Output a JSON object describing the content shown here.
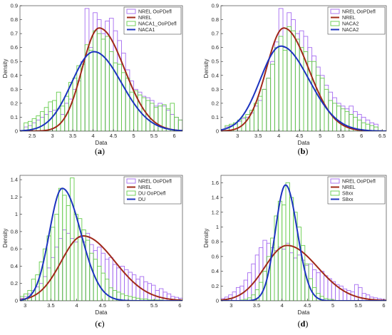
{
  "colors": {
    "hist_nrel": "#a66cf0",
    "hist_other": "#66cc4d",
    "fit_nrel": "#a0291a",
    "fit_other": "#1c33bf"
  },
  "chart_data": [
    {
      "type": "histogram_with_fit",
      "caption": "(a)",
      "xlabel": "Data",
      "ylabel": "Density",
      "xlim": [
        2.2,
        6.2
      ],
      "ylim": [
        0,
        0.9
      ],
      "xticks": [
        2.5,
        3,
        3.5,
        4,
        4.5,
        5,
        5.5,
        6
      ],
      "yticks": [
        0,
        0.1,
        0.2,
        0.3,
        0.4,
        0.5,
        0.6,
        0.7,
        0.8,
        0.9
      ],
      "legend_position": "top-right",
      "legend": [
        "NREL OoPDefl",
        "NREL",
        "NACA1_OoPDefl",
        "NACA1"
      ],
      "bin_start": 2.3,
      "bin_width": 0.1,
      "series": [
        {
          "name": "NREL OoPDefl",
          "kind": "hist",
          "color_key": "hist_nrel",
          "values": [
            0.03,
            0.04,
            0.06,
            0.08,
            0.1,
            0.12,
            0.14,
            0.15,
            0.16,
            0.12,
            0.2,
            0.23,
            0.3,
            0.36,
            0.5,
            0.88,
            0.6,
            0.85,
            0.8,
            0.7,
            0.79,
            0.81,
            0.72,
            0.65,
            0.56,
            0.44,
            0.36,
            0.3,
            0.28,
            0.25,
            0.24,
            0.22,
            0.18,
            0.2,
            0.18,
            0.15,
            0.12,
            0.1,
            0.08
          ]
        },
        {
          "name": "NACA1_OoPDefl",
          "kind": "hist",
          "color_key": "hist_other",
          "values": [
            0.06,
            0.07,
            0.09,
            0.11,
            0.14,
            0.17,
            0.21,
            0.22,
            0.28,
            0.18,
            0.25,
            0.35,
            0.38,
            0.47,
            0.48,
            0.62,
            0.58,
            0.72,
            0.7,
            0.66,
            0.68,
            0.57,
            0.49,
            0.48,
            0.42,
            0.38,
            0.28,
            0.29,
            0.26,
            0.24,
            0.22,
            0.2,
            0.17,
            0.18,
            0.19,
            0.16,
            0.2,
            0.1,
            0.08
          ]
        },
        {
          "name": "NREL",
          "kind": "fit",
          "color_key": "fit_nrel",
          "fit": {
            "family": "skewed",
            "peak_x": 4.15,
            "peak_y": 0.74,
            "sigma_left": 0.42,
            "sigma_right": 0.62
          }
        },
        {
          "name": "NACA1",
          "kind": "fit",
          "color_key": "fit_other",
          "fit": {
            "family": "skewed",
            "peak_x": 4.02,
            "peak_y": 0.57,
            "sigma_left": 0.55,
            "sigma_right": 0.68
          }
        }
      ]
    },
    {
      "type": "histogram_with_fit",
      "caption": "(b)",
      "xlabel": "Data",
      "ylabel": "Density",
      "xlim": [
        2.6,
        6.6
      ],
      "ylim": [
        0,
        0.9
      ],
      "xticks": [
        3,
        3.5,
        4,
        4.5,
        5,
        5.5,
        6,
        6.5
      ],
      "yticks": [
        0,
        0.1,
        0.2,
        0.3,
        0.4,
        0.5,
        0.6,
        0.7,
        0.8,
        0.9
      ],
      "legend_position": "top-right",
      "legend": [
        "NREL OoPDefl",
        "NREL",
        "NACA2",
        "NACA2"
      ],
      "bin_start": 2.7,
      "bin_width": 0.1,
      "series": [
        {
          "name": "NREL OoPDefl",
          "kind": "hist",
          "color_key": "hist_nrel",
          "values": [
            0.03,
            0.04,
            0.05,
            0.07,
            0.09,
            0.1,
            0.13,
            0.18,
            0.22,
            0.3,
            0.38,
            0.5,
            0.64,
            0.88,
            0.6,
            0.85,
            0.8,
            0.7,
            0.72,
            0.68,
            0.6,
            0.54,
            0.46,
            0.4,
            0.33,
            0.28,
            0.24,
            0.2,
            0.18,
            0.16,
            0.18,
            0.14,
            0.12,
            0.1,
            0.08,
            0.06,
            0.05
          ]
        },
        {
          "name": "NACA2",
          "kind": "hist",
          "color_key": "hist_other",
          "values": [
            0.04,
            0.05,
            0.06,
            0.08,
            0.1,
            0.12,
            0.15,
            0.2,
            0.25,
            0.3,
            0.38,
            0.48,
            0.6,
            0.68,
            0.58,
            0.75,
            0.72,
            0.66,
            0.6,
            0.57,
            0.5,
            0.5,
            0.4,
            0.38,
            0.3,
            0.22,
            0.2,
            0.18,
            0.16,
            0.14,
            0.12,
            0.1,
            0.08,
            0.06,
            0.05,
            0.04,
            0.03
          ]
        },
        {
          "name": "NREL",
          "kind": "fit",
          "color_key": "fit_nrel",
          "fit": {
            "family": "skewed",
            "peak_x": 4.12,
            "peak_y": 0.74,
            "sigma_left": 0.42,
            "sigma_right": 0.6
          }
        },
        {
          "name": "NACA2",
          "kind": "fit",
          "color_key": "fit_other",
          "fit": {
            "family": "skewed",
            "peak_x": 4.05,
            "peak_y": 0.61,
            "sigma_left": 0.5,
            "sigma_right": 0.68
          }
        }
      ]
    },
    {
      "type": "histogram_with_fit",
      "caption": "(c)",
      "xlabel": "Data",
      "ylabel": "Density",
      "xlim": [
        2.9,
        6.05
      ],
      "ylim": [
        0,
        1.45
      ],
      "xticks": [
        3,
        3.5,
        4,
        4.5,
        5,
        5.5,
        6
      ],
      "yticks": [
        0,
        0.2,
        0.4,
        0.6,
        0.8,
        1,
        1.2,
        1.4
      ],
      "legend_position": "top-right",
      "legend": [
        "NREL OoPDefl",
        "NREL",
        "DU OoPDefl",
        "DU"
      ],
      "bin_start": 2.9,
      "bin_width": 0.075,
      "series": [
        {
          "name": "NREL OoPDefl",
          "kind": "hist",
          "color_key": "hist_nrel",
          "values": [
            0.03,
            0.05,
            0.08,
            0.12,
            0.16,
            0.2,
            0.28,
            0.38,
            0.5,
            0.62,
            0.72,
            0.82,
            0.78,
            0.72,
            0.68,
            0.73,
            0.68,
            0.78,
            0.65,
            0.58,
            0.62,
            0.55,
            0.48,
            0.5,
            0.42,
            0.38,
            0.4,
            0.36,
            0.33,
            0.3,
            0.25,
            0.28,
            0.22,
            0.2,
            0.18,
            0.12,
            0.14,
            0.1,
            0.08,
            0.05,
            0.04,
            0.03
          ]
        },
        {
          "name": "DU OoPDefl",
          "kind": "hist",
          "color_key": "hist_other",
          "values": [
            0.05,
            0.08,
            0.12,
            0.25,
            0.3,
            0.45,
            0.6,
            0.75,
            0.85,
            1.0,
            1.3,
            1.22,
            1.1,
            1.42,
            1.0,
            0.95,
            0.82,
            0.7,
            0.55,
            0.48,
            0.4,
            0.32,
            0.25,
            0.15,
            0.12,
            0.1,
            0.08,
            0.06,
            0.05,
            0.04,
            0.03,
            0.02,
            0.02,
            0.01,
            0.01,
            0.01,
            0.01,
            0.0,
            0.0,
            0.0,
            0.0,
            0.0
          ]
        },
        {
          "name": "NREL",
          "kind": "fit",
          "color_key": "fit_nrel",
          "fit": {
            "family": "skewed",
            "peak_x": 4.12,
            "peak_y": 0.75,
            "sigma_left": 0.42,
            "sigma_right": 0.62
          }
        },
        {
          "name": "DU",
          "kind": "fit",
          "color_key": "fit_other",
          "fit": {
            "family": "skewed",
            "peak_x": 3.72,
            "peak_y": 1.3,
            "sigma_left": 0.25,
            "sigma_right": 0.36
          }
        }
      ]
    },
    {
      "type": "histogram_with_fit",
      "caption": "(d)",
      "xlabel": "Data",
      "ylabel": "Density",
      "xlim": [
        2.8,
        6.05
      ],
      "ylim": [
        0,
        1.7
      ],
      "xticks": [
        3,
        3.5,
        4,
        4.5,
        5,
        5.5,
        6
      ],
      "yticks": [
        0,
        0.2,
        0.4,
        0.6,
        0.8,
        1,
        1.2,
        1.4,
        1.6
      ],
      "legend_position": "top-right",
      "legend": [
        "NREL OoPDefl",
        "NREL",
        "S8xx",
        "S8xx"
      ],
      "bin_start": 2.8,
      "bin_width": 0.075,
      "series": [
        {
          "name": "NREL OoPDefl",
          "kind": "hist",
          "color_key": "hist_nrel",
          "values": [
            0.03,
            0.05,
            0.08,
            0.12,
            0.18,
            0.2,
            0.28,
            0.38,
            0.5,
            0.62,
            0.72,
            0.82,
            0.78,
            0.72,
            0.68,
            0.73,
            0.7,
            0.78,
            0.65,
            0.58,
            0.62,
            0.55,
            0.48,
            0.5,
            0.42,
            0.38,
            0.4,
            0.34,
            0.3,
            0.26,
            0.22,
            0.2,
            0.16,
            0.14,
            0.12,
            0.22,
            0.18,
            0.1,
            0.08,
            0.05,
            0.04,
            0.03,
            0.02
          ]
        },
        {
          "name": "S8xx",
          "kind": "hist",
          "color_key": "hist_other",
          "values": [
            0.0,
            0.0,
            0.0,
            0.0,
            0.0,
            0.01,
            0.02,
            0.04,
            0.08,
            0.15,
            0.25,
            0.4,
            0.6,
            0.85,
            1.15,
            1.35,
            1.3,
            1.6,
            1.4,
            1.2,
            1.0,
            0.75,
            0.5,
            0.3,
            0.18,
            0.1,
            0.06,
            0.03,
            0.02,
            0.01,
            0.0,
            0.0,
            0.0,
            0.0,
            0.0,
            0.0,
            0.0,
            0.0,
            0.0,
            0.0,
            0.0,
            0.0,
            0.0
          ]
        },
        {
          "name": "NREL",
          "kind": "fit",
          "color_key": "fit_nrel",
          "fit": {
            "family": "skewed",
            "peak_x": 4.1,
            "peak_y": 0.75,
            "sigma_left": 0.44,
            "sigma_right": 0.6
          }
        },
        {
          "name": "S8xx",
          "kind": "fit",
          "color_key": "fit_other",
          "fit": {
            "family": "skewed",
            "peak_x": 4.07,
            "peak_y": 1.57,
            "sigma_left": 0.2,
            "sigma_right": 0.23
          }
        }
      ]
    }
  ]
}
